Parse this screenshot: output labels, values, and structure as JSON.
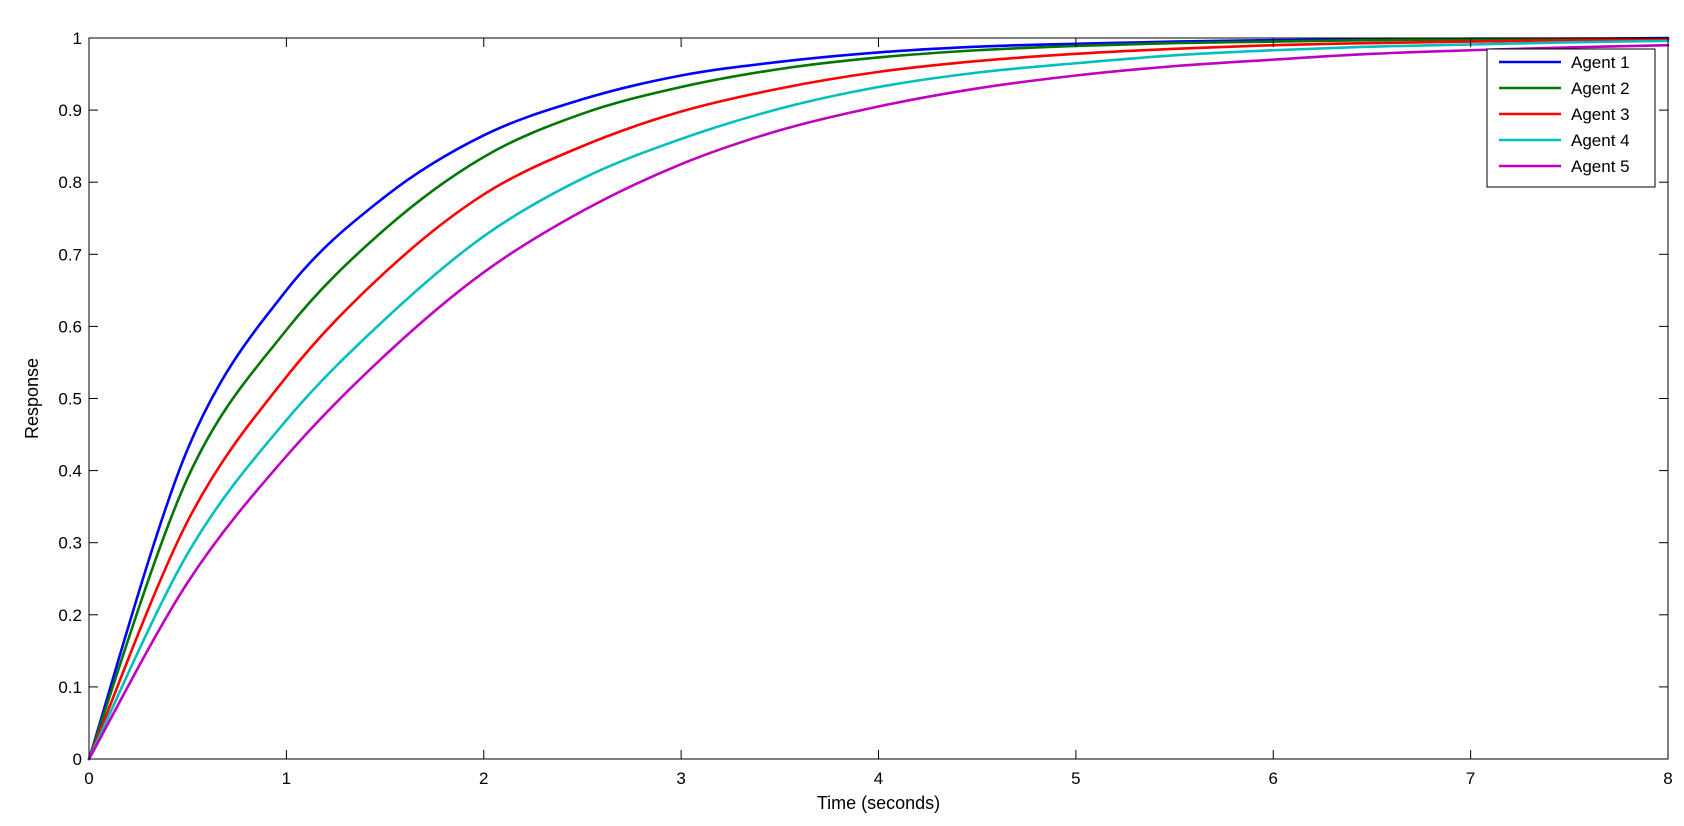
{
  "chart_data": {
    "type": "line",
    "title": "",
    "xlabel": "Time (seconds)",
    "ylabel": "Response",
    "xlim": [
      0,
      8
    ],
    "ylim": [
      0,
      1
    ],
    "xticks": [
      "0",
      "1",
      "2",
      "3",
      "4",
      "5",
      "6",
      "7",
      "8"
    ],
    "yticks": [
      "0",
      "0.1",
      "0.2",
      "0.3",
      "0.4",
      "0.5",
      "0.6",
      "0.7",
      "0.8",
      "0.9",
      "1"
    ],
    "grid": false,
    "legend_position": "top-right",
    "x": [
      0,
      0.5,
      1,
      1.5,
      2,
      2.5,
      3,
      3.5,
      4,
      4.5,
      5,
      5.5,
      6,
      6.5,
      7,
      7.5,
      8
    ],
    "series": [
      {
        "name": "Agent 1",
        "color": "#0000ff",
        "values": [
          0,
          0.43,
          0.65,
          0.78,
          0.865,
          0.915,
          0.948,
          0.967,
          0.98,
          0.988,
          0.992,
          0.995,
          0.997,
          0.998,
          0.999,
          0.999,
          1.0
        ]
      },
      {
        "name": "Agent 2",
        "color": "#007700",
        "values": [
          0,
          0.39,
          0.595,
          0.735,
          0.835,
          0.895,
          0.932,
          0.957,
          0.973,
          0.983,
          0.989,
          0.993,
          0.995,
          0.997,
          0.998,
          0.999,
          0.999
        ]
      },
      {
        "name": "Agent 3",
        "color": "#ff0000",
        "values": [
          0,
          0.33,
          0.53,
          0.675,
          0.783,
          0.85,
          0.898,
          0.93,
          0.953,
          0.968,
          0.978,
          0.985,
          0.99,
          0.993,
          0.995,
          0.997,
          0.998
        ]
      },
      {
        "name": "Agent 4",
        "color": "#00bfbf",
        "values": [
          0,
          0.285,
          0.47,
          0.61,
          0.725,
          0.805,
          0.86,
          0.902,
          0.932,
          0.952,
          0.965,
          0.976,
          0.983,
          0.988,
          0.991,
          0.994,
          0.996
        ]
      },
      {
        "name": "Agent 5",
        "color": "#bf00bf",
        "values": [
          0,
          0.245,
          0.42,
          0.56,
          0.675,
          0.76,
          0.825,
          0.872,
          0.905,
          0.93,
          0.948,
          0.961,
          0.97,
          0.978,
          0.983,
          0.987,
          0.99
        ]
      }
    ]
  }
}
